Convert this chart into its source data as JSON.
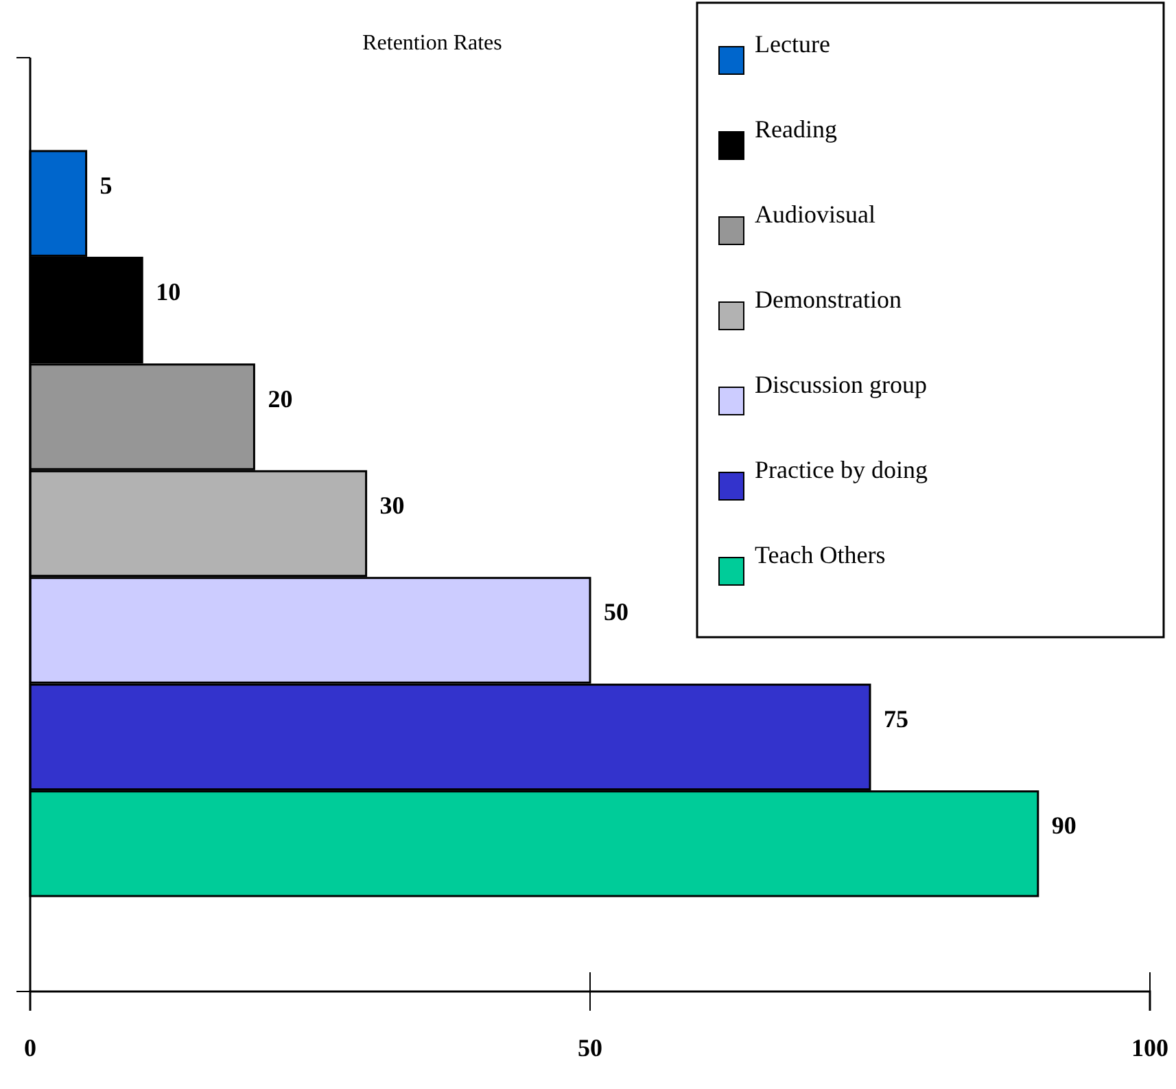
{
  "chart_data": {
    "type": "bar",
    "orientation": "horizontal",
    "title": "Retention Rates",
    "categories": [
      null
    ],
    "series": [
      {
        "name": "Lecture",
        "color": "#0066cc",
        "values": [
          5
        ]
      },
      {
        "name": "Reading",
        "color": "#000000",
        "values": [
          10
        ]
      },
      {
        "name": "Audiovisual",
        "color": "#969696",
        "values": [
          20
        ]
      },
      {
        "name": "Demonstration",
        "color": "#b2b2b2",
        "values": [
          30
        ]
      },
      {
        "name": "Discussion group",
        "color": "#ccccff",
        "values": [
          50
        ]
      },
      {
        "name": "Practice by doing",
        "color": "#3333cc",
        "values": [
          75
        ]
      },
      {
        "name": "Teach Others",
        "color": "#00cc99",
        "values": [
          90
        ]
      }
    ],
    "xlim": [
      0,
      100
    ],
    "xticks": [
      0,
      50,
      100
    ],
    "tick_labels": "x",
    "data_labels": true,
    "legend": "top right",
    "grid": false
  }
}
